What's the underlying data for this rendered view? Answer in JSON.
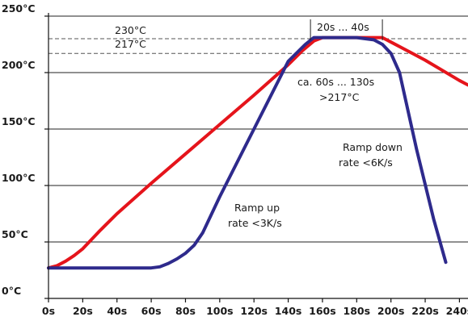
{
  "chart_data": {
    "type": "line",
    "title": "",
    "xlabel": "",
    "ylabel": "",
    "xlim": [
      0,
      245
    ],
    "ylim": [
      0,
      250
    ],
    "grid": "horizontal",
    "x_tick_labels": [
      "0s",
      "20s",
      "40s",
      "60s",
      "80s",
      "100s",
      "120s",
      "140s",
      "160s",
      "180s",
      "200s",
      "220s",
      "240s"
    ],
    "x_tick_values": [
      0,
      20,
      40,
      60,
      80,
      100,
      120,
      140,
      160,
      180,
      200,
      220,
      240
    ],
    "y_tick_labels": [
      "0°C",
      "50°C",
      "100°C",
      "150°C",
      "200°C",
      "250°C"
    ],
    "y_tick_values": [
      0,
      50,
      100,
      150,
      200,
      250
    ],
    "reference_lines": [
      {
        "y": 230,
        "label": "230°C"
      },
      {
        "y": 217,
        "label": "217°C"
      }
    ],
    "series": [
      {
        "color": "#e5141b",
        "x": [
          0,
          5,
          10,
          15,
          20,
          30,
          40,
          60,
          80,
          100,
          120,
          140,
          148,
          155,
          160,
          180,
          195,
          200,
          210,
          220,
          230,
          240,
          245
        ],
        "y": [
          27,
          29,
          33,
          38,
          44,
          60,
          75,
          102,
          128,
          154,
          180,
          207,
          219,
          228,
          231,
          231,
          231,
          227,
          219,
          211,
          202,
          193,
          189
        ]
      },
      {
        "color": "#2e2a8c",
        "x": [
          0,
          20,
          40,
          60,
          65,
          70,
          75,
          80,
          85,
          90,
          100,
          120,
          140,
          150,
          155,
          160,
          180,
          190,
          195,
          200,
          205,
          215,
          225,
          232
        ],
        "y": [
          27,
          27,
          27,
          27,
          28,
          31,
          35,
          40,
          47,
          58,
          90,
          150,
          210,
          225,
          231,
          231,
          231,
          229,
          225,
          217,
          200,
          132,
          70,
          32
        ]
      }
    ],
    "annotations": {
      "window_label": "20s ... 40s",
      "time_above_line1": "ca. 60s ... 130s",
      "time_above_line2": ">217°C",
      "ramp_up_line1": "Ramp up",
      "ramp_up_line2": "rate <3K/s",
      "ramp_down_line1": "Ramp down",
      "ramp_down_line2": "rate <6K/s"
    }
  }
}
